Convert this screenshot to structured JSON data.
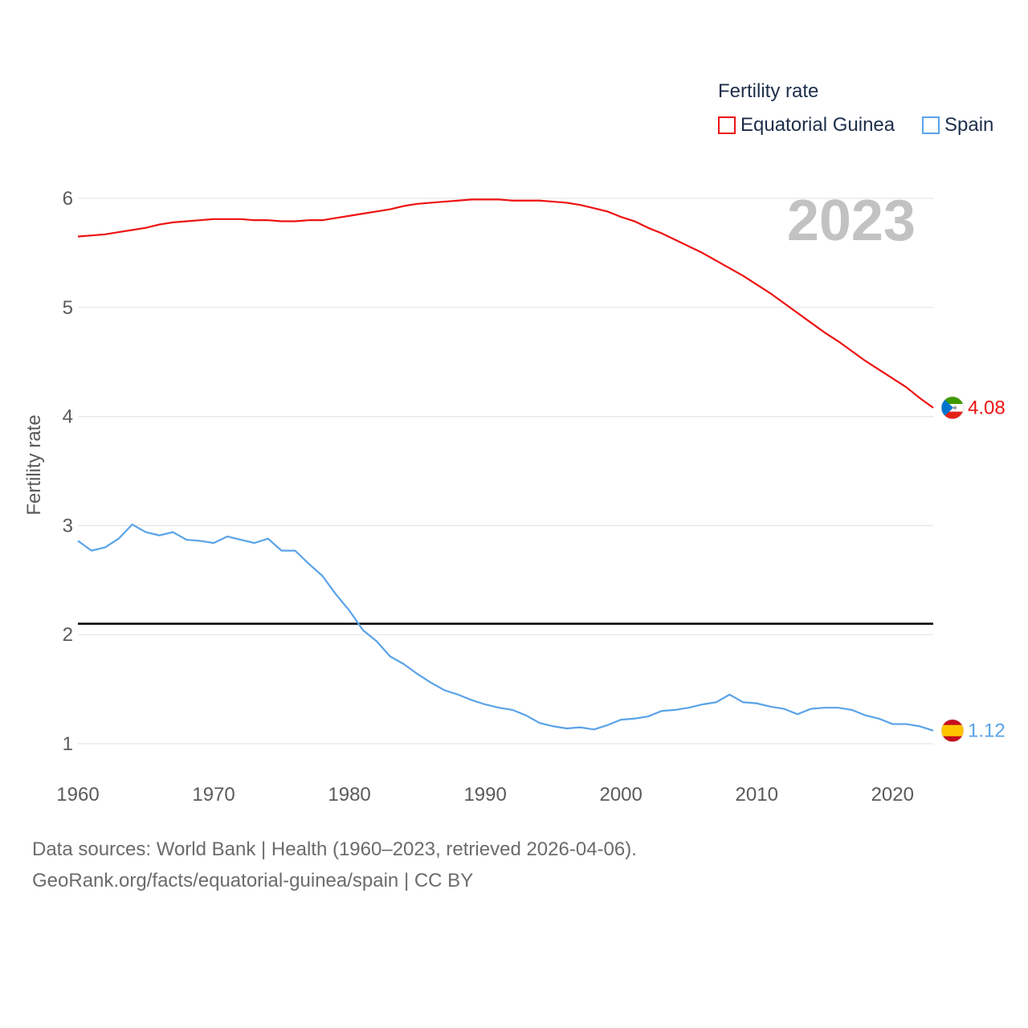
{
  "legend": {
    "title": "Fertility rate",
    "items": [
      {
        "label": "Equatorial Guinea",
        "color": "#ee1111"
      },
      {
        "label": "Spain",
        "color": "#5aa3e8"
      }
    ]
  },
  "footer": {
    "line1": "Data sources: World Bank | Health (1960–2023, retrieved 2026-04-06).",
    "line2": "GeoRank.org/facts/equatorial-guinea/spain | CC BY"
  },
  "chart_data": {
    "type": "line",
    "title": "Fertility rate",
    "year_label": "2023",
    "xlabel": "",
    "ylabel": "Fertility rate",
    "xlim": [
      1960,
      2023
    ],
    "ylim": [
      0.7,
      6.3
    ],
    "x_ticks": [
      1960,
      1970,
      1980,
      1990,
      2000,
      2010,
      2020
    ],
    "y_ticks": [
      1,
      2,
      3,
      4,
      5,
      6
    ],
    "grid": true,
    "reference_line": {
      "y": 2.1,
      "color": "#000000"
    },
    "x": [
      1960,
      1961,
      1962,
      1963,
      1964,
      1965,
      1966,
      1967,
      1968,
      1969,
      1970,
      1971,
      1972,
      1973,
      1974,
      1975,
      1976,
      1977,
      1978,
      1979,
      1980,
      1981,
      1982,
      1983,
      1984,
      1985,
      1986,
      1987,
      1988,
      1989,
      1990,
      1991,
      1992,
      1993,
      1994,
      1995,
      1996,
      1997,
      1998,
      1999,
      2000,
      2001,
      2002,
      2003,
      2004,
      2005,
      2006,
      2007,
      2008,
      2009,
      2010,
      2011,
      2012,
      2013,
      2014,
      2015,
      2016,
      2017,
      2018,
      2019,
      2020,
      2021,
      2022,
      2023
    ],
    "series": [
      {
        "name": "Equatorial Guinea",
        "color": "#ee1111",
        "end_label": "4.08",
        "values": [
          5.65,
          5.66,
          5.67,
          5.69,
          5.71,
          5.73,
          5.76,
          5.78,
          5.79,
          5.8,
          5.81,
          5.81,
          5.81,
          5.8,
          5.8,
          5.79,
          5.79,
          5.8,
          5.8,
          5.82,
          5.84,
          5.86,
          5.88,
          5.9,
          5.93,
          5.95,
          5.96,
          5.97,
          5.98,
          5.99,
          5.99,
          5.99,
          5.98,
          5.98,
          5.98,
          5.97,
          5.96,
          5.94,
          5.91,
          5.88,
          5.83,
          5.79,
          5.73,
          5.68,
          5.62,
          5.56,
          5.5,
          5.43,
          5.36,
          5.29,
          5.21,
          5.13,
          5.04,
          4.95,
          4.86,
          4.77,
          4.69,
          4.6,
          4.51,
          4.43,
          4.35,
          4.27,
          4.17,
          4.08
        ]
      },
      {
        "name": "Spain",
        "color": "#5aa3e8",
        "end_label": "1.12",
        "values": [
          2.86,
          2.77,
          2.8,
          2.88,
          3.01,
          2.94,
          2.91,
          2.94,
          2.87,
          2.86,
          2.84,
          2.9,
          2.87,
          2.84,
          2.88,
          2.77,
          2.77,
          2.65,
          2.54,
          2.37,
          2.22,
          2.04,
          1.94,
          1.8,
          1.73,
          1.64,
          1.56,
          1.49,
          1.45,
          1.4,
          1.36,
          1.33,
          1.31,
          1.26,
          1.19,
          1.16,
          1.14,
          1.15,
          1.13,
          1.17,
          1.22,
          1.23,
          1.25,
          1.3,
          1.31,
          1.33,
          1.36,
          1.38,
          1.45,
          1.38,
          1.37,
          1.34,
          1.32,
          1.27,
          1.32,
          1.33,
          1.33,
          1.31,
          1.26,
          1.23,
          1.18,
          1.18,
          1.16,
          1.12
        ]
      }
    ]
  }
}
